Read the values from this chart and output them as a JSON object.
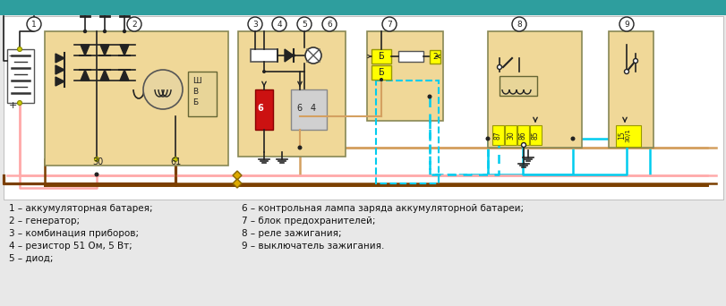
{
  "bg_color": "#e8e8e8",
  "header_color": "#2e9e9e",
  "diagram_bg": "#ffffff",
  "box_fill": "#f0d898",
  "box_edge": "#888855",
  "yellow_fill": "#ffff00",
  "red_fill": "#cc1111",
  "pink_wire": "#ffaaaa",
  "brown_wire": "#7b3f00",
  "cyan_wire": "#00ccee",
  "beige_wire": "#d4a060",
  "black_wire": "#222222",
  "legend_lines": [
    [
      "1 – аккумуляторная батарея;",
      "6 – контрольная лампа заряда аккумуляторной батареи;"
    ],
    [
      "2 – генератор;",
      "7 – блок предохранителей;"
    ],
    [
      "3 – комбинация приборов;",
      "8 – реле зажигания;"
    ],
    [
      "4 – резистор 51 Ом, 5 Вт;",
      "9 – выключатель зажигания."
    ],
    [
      "5 – диод;",
      ""
    ]
  ]
}
